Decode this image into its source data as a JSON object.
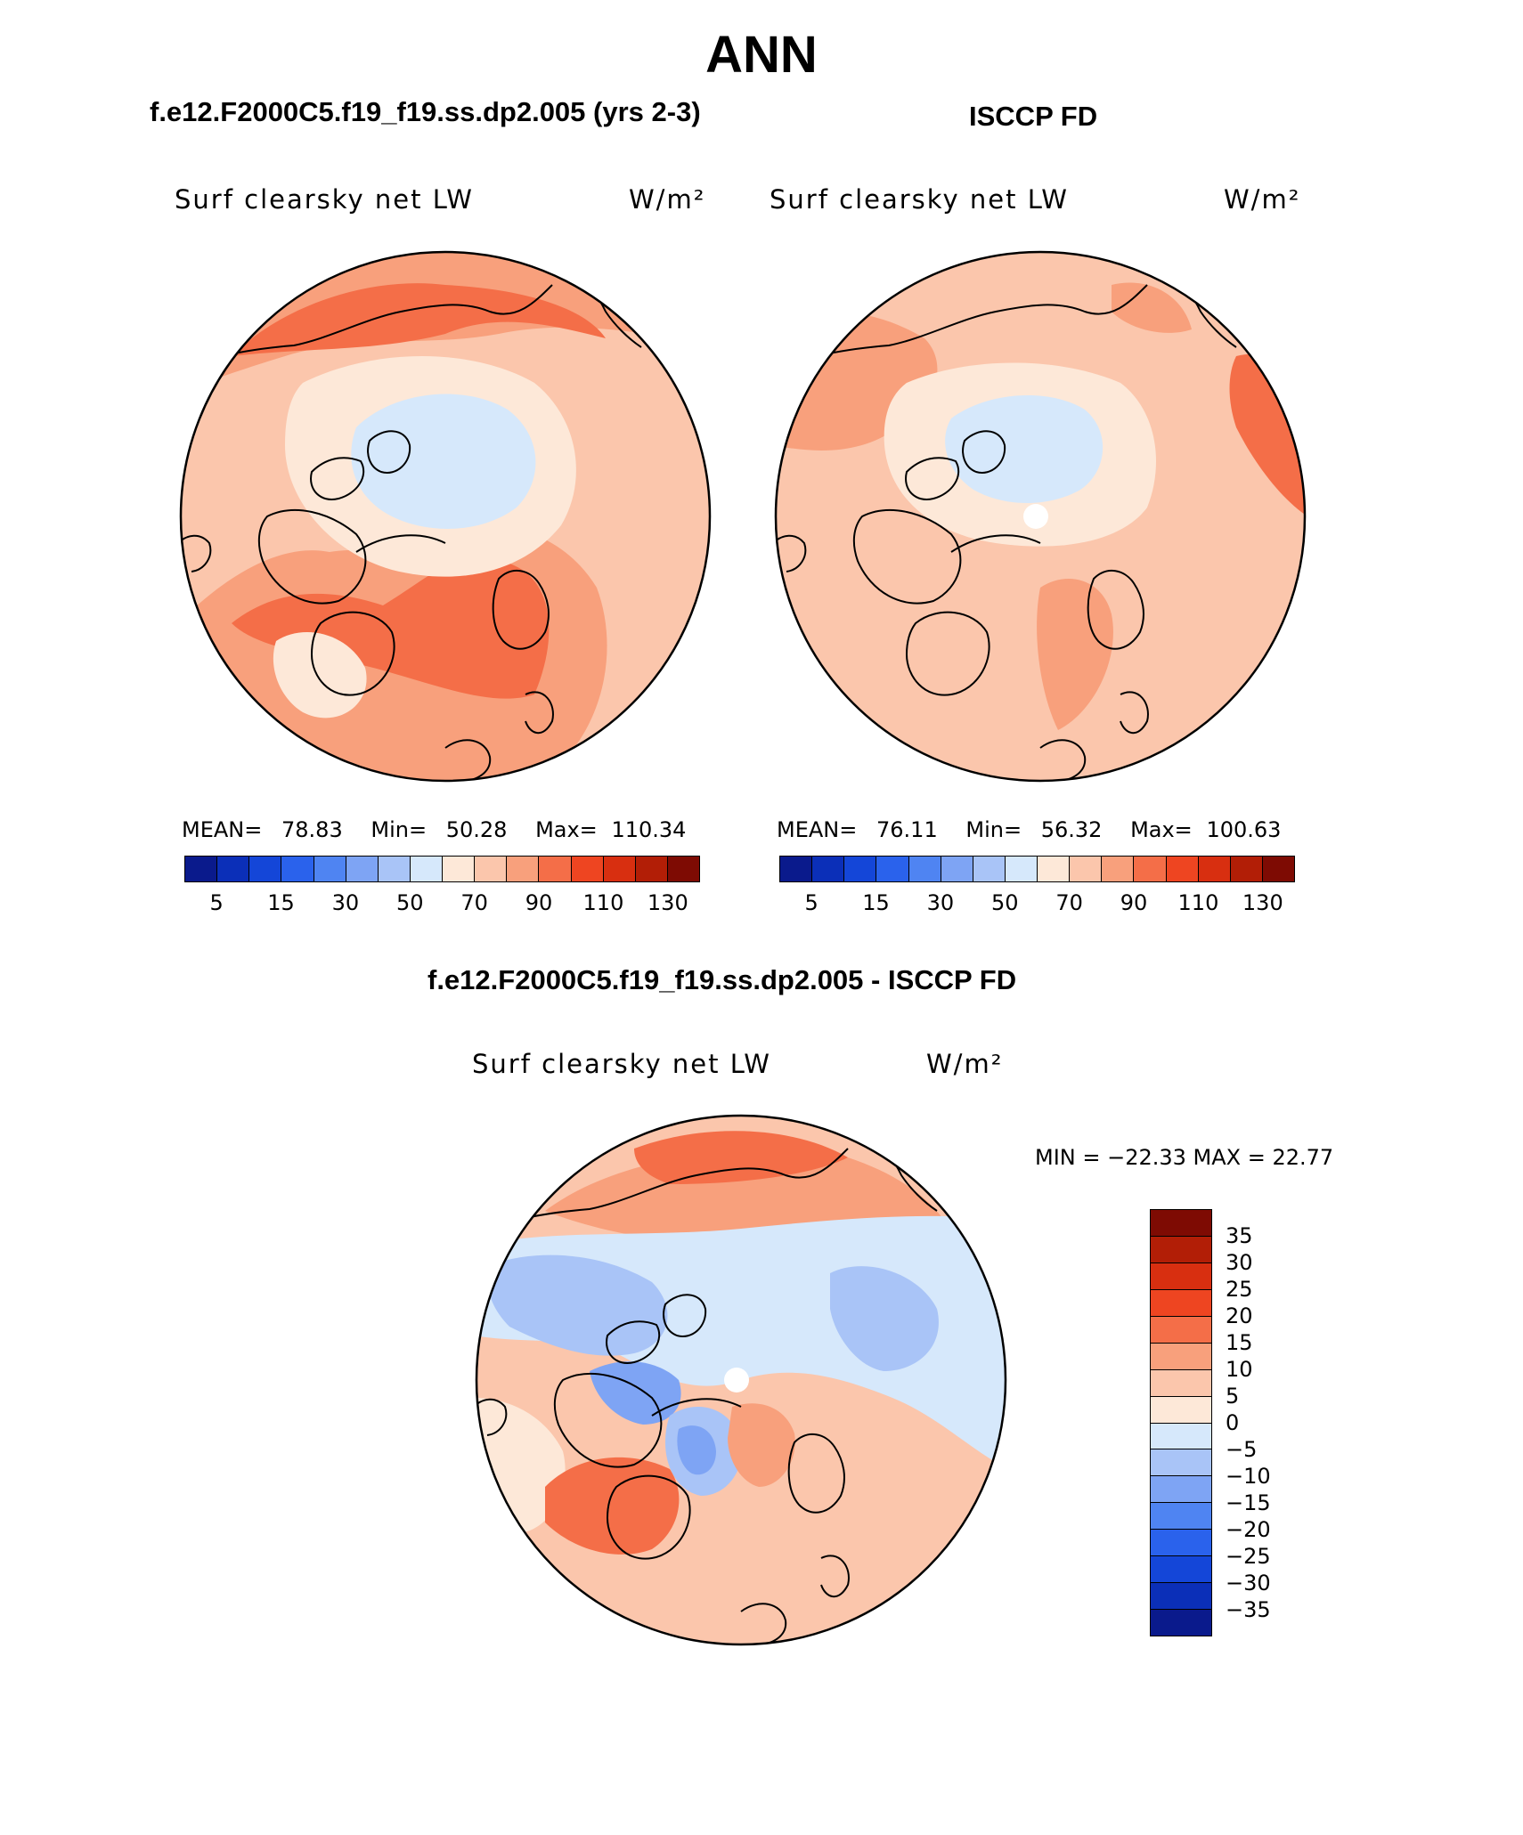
{
  "title": "ANN",
  "panels": [
    {
      "title": "f.e12.F2000C5.f19_f19.ss.dp2.005 (yrs 2-3)",
      "variable": "Surf  clearsky  net  LW",
      "units": "W/m²",
      "mean_label": "MEAN=",
      "mean": "78.83",
      "min_label": "Min=",
      "min": "50.28",
      "max_label": "Max=",
      "max": "110.34"
    },
    {
      "title": "ISCCP FD",
      "variable": "Surf  clearsky  net  LW",
      "units": "W/m²",
      "mean_label": "MEAN=",
      "mean": "76.11",
      "min_label": "Min=",
      "min": "56.32",
      "max_label": "Max=",
      "max": "100.63"
    }
  ],
  "diff": {
    "title": "f.e12.F2000C5.f19_f19.ss.dp2.005 - ISCCP FD",
    "variable": "Surf  clearsky  net  LW",
    "units": "W/m²",
    "stats_text": "MIN = −22.33 MAX =  22.77"
  },
  "colorbar_abs": {
    "colors": [
      "#0a1a8c",
      "#0b2fb8",
      "#1446d8",
      "#2a62ec",
      "#4f84f2",
      "#7ea4f4",
      "#a9c4f7",
      "#d6e8fb",
      "#fde8d8",
      "#fbc6ac",
      "#f8a07c",
      "#f46e48",
      "#ee4521",
      "#d82f10",
      "#b21e06",
      "#7e0b03"
    ],
    "ticks": [
      "5",
      "15",
      "30",
      "50",
      "70",
      "90",
      "110",
      "130"
    ]
  },
  "colorbar_diff": {
    "colors": [
      "#7e0b03",
      "#b21e06",
      "#d82f10",
      "#ee4521",
      "#f46e48",
      "#f8a07c",
      "#fbc6ac",
      "#fde8d8",
      "#d6e8fb",
      "#a9c4f7",
      "#7ea4f4",
      "#4f84f2",
      "#2a62ec",
      "#1446d8",
      "#0b2fb8",
      "#0a1a8c"
    ],
    "ticks": [
      "35",
      "30",
      "25",
      "20",
      "15",
      "10",
      "5",
      "0",
      "−5",
      "−10",
      "−15",
      "−20",
      "−25",
      "−30",
      "−35"
    ]
  }
}
